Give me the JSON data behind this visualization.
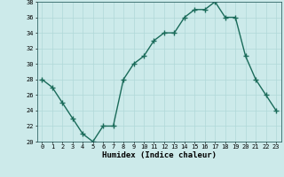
{
  "x": [
    0,
    1,
    2,
    3,
    4,
    5,
    6,
    7,
    8,
    9,
    10,
    11,
    12,
    13,
    14,
    15,
    16,
    17,
    18,
    19,
    20,
    21,
    22,
    23
  ],
  "y": [
    28,
    27,
    25,
    23,
    21,
    20,
    22,
    22,
    28,
    30,
    31,
    33,
    34,
    34,
    36,
    37,
    37,
    38,
    36,
    36,
    31,
    28,
    26,
    24
  ],
  "xlabel": "Humidex (Indice chaleur)",
  "ylim": [
    20,
    38
  ],
  "xlim": [
    -0.5,
    23.5
  ],
  "yticks": [
    20,
    22,
    24,
    26,
    28,
    30,
    32,
    34,
    36,
    38
  ],
  "xticks": [
    0,
    1,
    2,
    3,
    4,
    5,
    6,
    7,
    8,
    9,
    10,
    11,
    12,
    13,
    14,
    15,
    16,
    17,
    18,
    19,
    20,
    21,
    22,
    23
  ],
  "line_color": "#1a6b5a",
  "bg_color": "#cceaea",
  "grid_color": "#b0d8d8",
  "marker": "+",
  "marker_size": 4,
  "line_width": 1.0,
  "xlabel_fontsize": 6.5,
  "tick_fontsize": 5.0
}
